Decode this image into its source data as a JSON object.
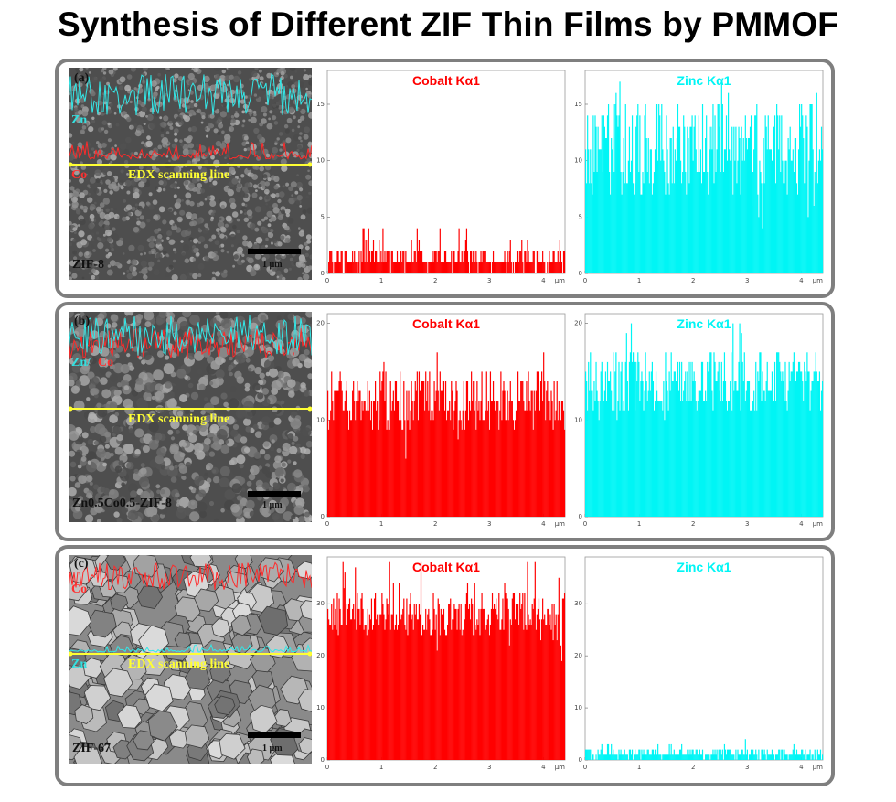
{
  "title": "Synthesis of Different ZIF Thin Films by PMMOF",
  "colors": {
    "cobalt": "#ff0000",
    "zinc": "#00f5f5",
    "scan_line": "#ffff33",
    "frame": "#7f7f7f"
  },
  "rows": [
    {
      "sem": {
        "panel_label": "(a)",
        "sample_label": "ZIF-8",
        "scan_line_label": "EDX scanning line",
        "scale_bar_label": "1 µm",
        "trace_labels": [
          "Zn",
          "Co"
        ]
      },
      "chart_data": [
        {
          "type": "bar",
          "title": "Cobalt Kα1",
          "element": "cobalt",
          "xlim": [
            0,
            4.4
          ],
          "ylim": [
            0,
            18
          ],
          "xticks": [
            "0",
            "1",
            "2",
            "3",
            "4"
          ],
          "xunit": "µm",
          "yticks": [
            "0",
            "5",
            "10",
            "15"
          ],
          "profile": {
            "base": 1,
            "variation": 1,
            "max": 4
          }
        },
        {
          "type": "bar",
          "title": "Zinc Kα1",
          "element": "zinc",
          "xlim": [
            0,
            4.4
          ],
          "ylim": [
            0,
            18
          ],
          "xticks": [
            "0",
            "1",
            "2",
            "3",
            "4"
          ],
          "xunit": "µm",
          "yticks": [
            "0",
            "5",
            "10",
            "15"
          ],
          "profile": {
            "base": 11,
            "variation": 4,
            "max": 17
          }
        }
      ]
    },
    {
      "sem": {
        "panel_label": "(b)",
        "sample_label": "Zn0.5Co0.5-ZIF-8",
        "scan_line_label": "EDX scanning line",
        "scale_bar_label": "1 µm",
        "trace_labels": [
          "Zn/",
          "Co"
        ]
      },
      "chart_data": [
        {
          "type": "bar",
          "title": "Cobalt Kα1",
          "element": "cobalt",
          "xlim": [
            0,
            4.4
          ],
          "ylim": [
            0,
            21
          ],
          "xticks": [
            "0",
            "1",
            "2",
            "3",
            "4"
          ],
          "xunit": "µm",
          "yticks": [
            "0",
            "10",
            "20"
          ],
          "profile": {
            "base": 12,
            "variation": 3,
            "max": 17
          }
        },
        {
          "type": "bar",
          "title": "Zinc Kα1",
          "element": "zinc",
          "xlim": [
            0,
            4.4
          ],
          "ylim": [
            0,
            21
          ],
          "xticks": [
            "0",
            "1",
            "2",
            "3",
            "4"
          ],
          "xunit": "µm",
          "yticks": [
            "0",
            "10",
            "20"
          ],
          "profile": {
            "base": 14,
            "variation": 3,
            "max": 20
          }
        }
      ]
    },
    {
      "sem": {
        "panel_label": "(c)",
        "sample_label": "ZIF-67",
        "scan_line_label": "EDX scanning line",
        "scale_bar_label": "1 µm",
        "trace_labels": [
          "Co",
          "Zn"
        ]
      },
      "chart_data": [
        {
          "type": "bar",
          "title": "Cobalt Kα1",
          "element": "cobalt",
          "xlim": [
            0,
            4.4
          ],
          "ylim": [
            0,
            39
          ],
          "xticks": [
            "0",
            "1",
            "2",
            "3",
            "4"
          ],
          "xunit": "µm",
          "yticks": [
            "0",
            "10",
            "20",
            "30"
          ],
          "profile": {
            "base": 28,
            "variation": 4,
            "max": 38
          }
        },
        {
          "type": "bar",
          "title": "Zinc Kα1",
          "element": "zinc",
          "xlim": [
            0,
            4.4
          ],
          "ylim": [
            0,
            39
          ],
          "xticks": [
            "0",
            "1",
            "2",
            "3",
            "4"
          ],
          "xunit": "µm",
          "yticks": [
            "0",
            "10",
            "20",
            "30"
          ],
          "profile": {
            "base": 1,
            "variation": 1,
            "max": 4
          }
        }
      ]
    }
  ]
}
